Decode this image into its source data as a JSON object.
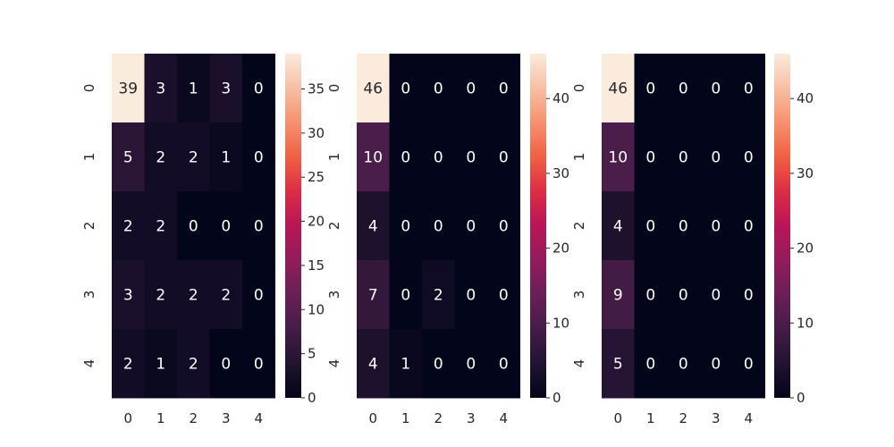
{
  "chart_data": [
    {
      "type": "heatmap",
      "title": "",
      "xlabel": "",
      "ylabel": "",
      "x_ticks": [
        "0",
        "1",
        "2",
        "3",
        "4"
      ],
      "y_ticks": [
        "0",
        "1",
        "2",
        "3",
        "4"
      ],
      "values": [
        [
          39,
          3,
          1,
          3,
          0
        ],
        [
          5,
          2,
          2,
          1,
          0
        ],
        [
          2,
          2,
          0,
          0,
          0
        ],
        [
          3,
          2,
          2,
          2,
          0
        ],
        [
          2,
          1,
          2,
          0,
          0
        ]
      ],
      "colorbar": {
        "range": [
          0,
          39
        ],
        "ticks": [
          "0",
          "5",
          "10",
          "15",
          "20",
          "25",
          "30",
          "35"
        ]
      },
      "colormap": "rocket",
      "annotated": true
    },
    {
      "type": "heatmap",
      "title": "",
      "xlabel": "",
      "ylabel": "",
      "x_ticks": [
        "0",
        "1",
        "2",
        "3",
        "4"
      ],
      "y_ticks": [
        "0",
        "1",
        "2",
        "3",
        "4"
      ],
      "values": [
        [
          46,
          0,
          0,
          0,
          0
        ],
        [
          10,
          0,
          0,
          0,
          0
        ],
        [
          4,
          0,
          0,
          0,
          0
        ],
        [
          7,
          0,
          2,
          0,
          0
        ],
        [
          4,
          1,
          0,
          0,
          0
        ]
      ],
      "colorbar": {
        "range": [
          0,
          46
        ],
        "ticks": [
          "0",
          "10",
          "20",
          "30",
          "40"
        ]
      },
      "colormap": "rocket",
      "annotated": true
    },
    {
      "type": "heatmap",
      "title": "",
      "xlabel": "",
      "ylabel": "",
      "x_ticks": [
        "0",
        "1",
        "2",
        "3",
        "4"
      ],
      "y_ticks": [
        "0",
        "1",
        "2",
        "3",
        "4"
      ],
      "values": [
        [
          46,
          0,
          0,
          0,
          0
        ],
        [
          10,
          0,
          0,
          0,
          0
        ],
        [
          4,
          0,
          0,
          0,
          0
        ],
        [
          9,
          0,
          0,
          0,
          0
        ],
        [
          5,
          0,
          0,
          0,
          0
        ]
      ],
      "colorbar": {
        "range": [
          0,
          46
        ],
        "ticks": [
          "0",
          "10",
          "20",
          "30",
          "40"
        ]
      },
      "colormap": "rocket",
      "annotated": true
    }
  ]
}
